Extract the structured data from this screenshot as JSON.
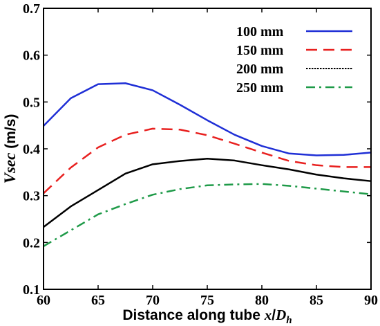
{
  "chart_data": {
    "type": "line",
    "xlabel_prefix": "Distance along tube ",
    "xlabel_var": "x",
    "xlabel_sep": "/",
    "xlabel_var2": "D",
    "xlabel_sub": "h",
    "ylabel_var": "Vsec",
    "ylabel_unit": " (m/s)",
    "xlim": [
      60,
      90
    ],
    "ylim": [
      0.1,
      0.7
    ],
    "xticks": [
      60,
      65,
      70,
      75,
      80,
      85,
      90
    ],
    "yticks": [
      0.1,
      0.2,
      0.3,
      0.4,
      0.5,
      0.6,
      0.7
    ],
    "x_tick_labels": [
      "60",
      "65",
      "70",
      "75",
      "80",
      "85",
      "90"
    ],
    "y_tick_labels": [
      "0.1",
      "0.2",
      "0.3",
      "0.4",
      "0.5",
      "0.6",
      "0.7"
    ],
    "grid": false,
    "legend_position": "top-right",
    "series": [
      {
        "name": "100 mm",
        "color": "#1f2fd6",
        "dash": "solid",
        "x": [
          60,
          62.5,
          65,
          67.5,
          70,
          72.5,
          75,
          77.5,
          80,
          82.5,
          85,
          87.5,
          90
        ],
        "y": [
          0.449,
          0.508,
          0.538,
          0.54,
          0.525,
          0.494,
          0.461,
          0.43,
          0.406,
          0.39,
          0.386,
          0.387,
          0.392
        ]
      },
      {
        "name": "150 mm",
        "color": "#e8201f",
        "dash": "long-dash",
        "x": [
          60,
          62.5,
          65,
          67.5,
          70,
          72.5,
          75,
          77.5,
          80,
          82.5,
          85,
          87.5,
          90
        ],
        "y": [
          0.305,
          0.36,
          0.403,
          0.43,
          0.443,
          0.441,
          0.429,
          0.411,
          0.392,
          0.374,
          0.365,
          0.361,
          0.361
        ]
      },
      {
        "name": "200 mm",
        "color": "#000000",
        "dash": "dotted",
        "x": [
          60,
          62.5,
          65,
          67.5,
          70,
          72.5,
          75,
          77.5,
          80,
          82.5,
          85,
          87.5,
          90
        ],
        "y": [
          0.233,
          0.277,
          0.312,
          0.347,
          0.367,
          0.374,
          0.379,
          0.375,
          0.365,
          0.356,
          0.345,
          0.337,
          0.331
        ]
      },
      {
        "name": "250 mm",
        "color": "#1e9a48",
        "dash": "dash-dot",
        "x": [
          60,
          62.5,
          65,
          67.5,
          70,
          72.5,
          75,
          77.5,
          80,
          82.5,
          85,
          87.5,
          90
        ],
        "y": [
          0.192,
          0.226,
          0.26,
          0.282,
          0.302,
          0.314,
          0.322,
          0.324,
          0.325,
          0.321,
          0.315,
          0.309,
          0.303
        ]
      }
    ]
  }
}
